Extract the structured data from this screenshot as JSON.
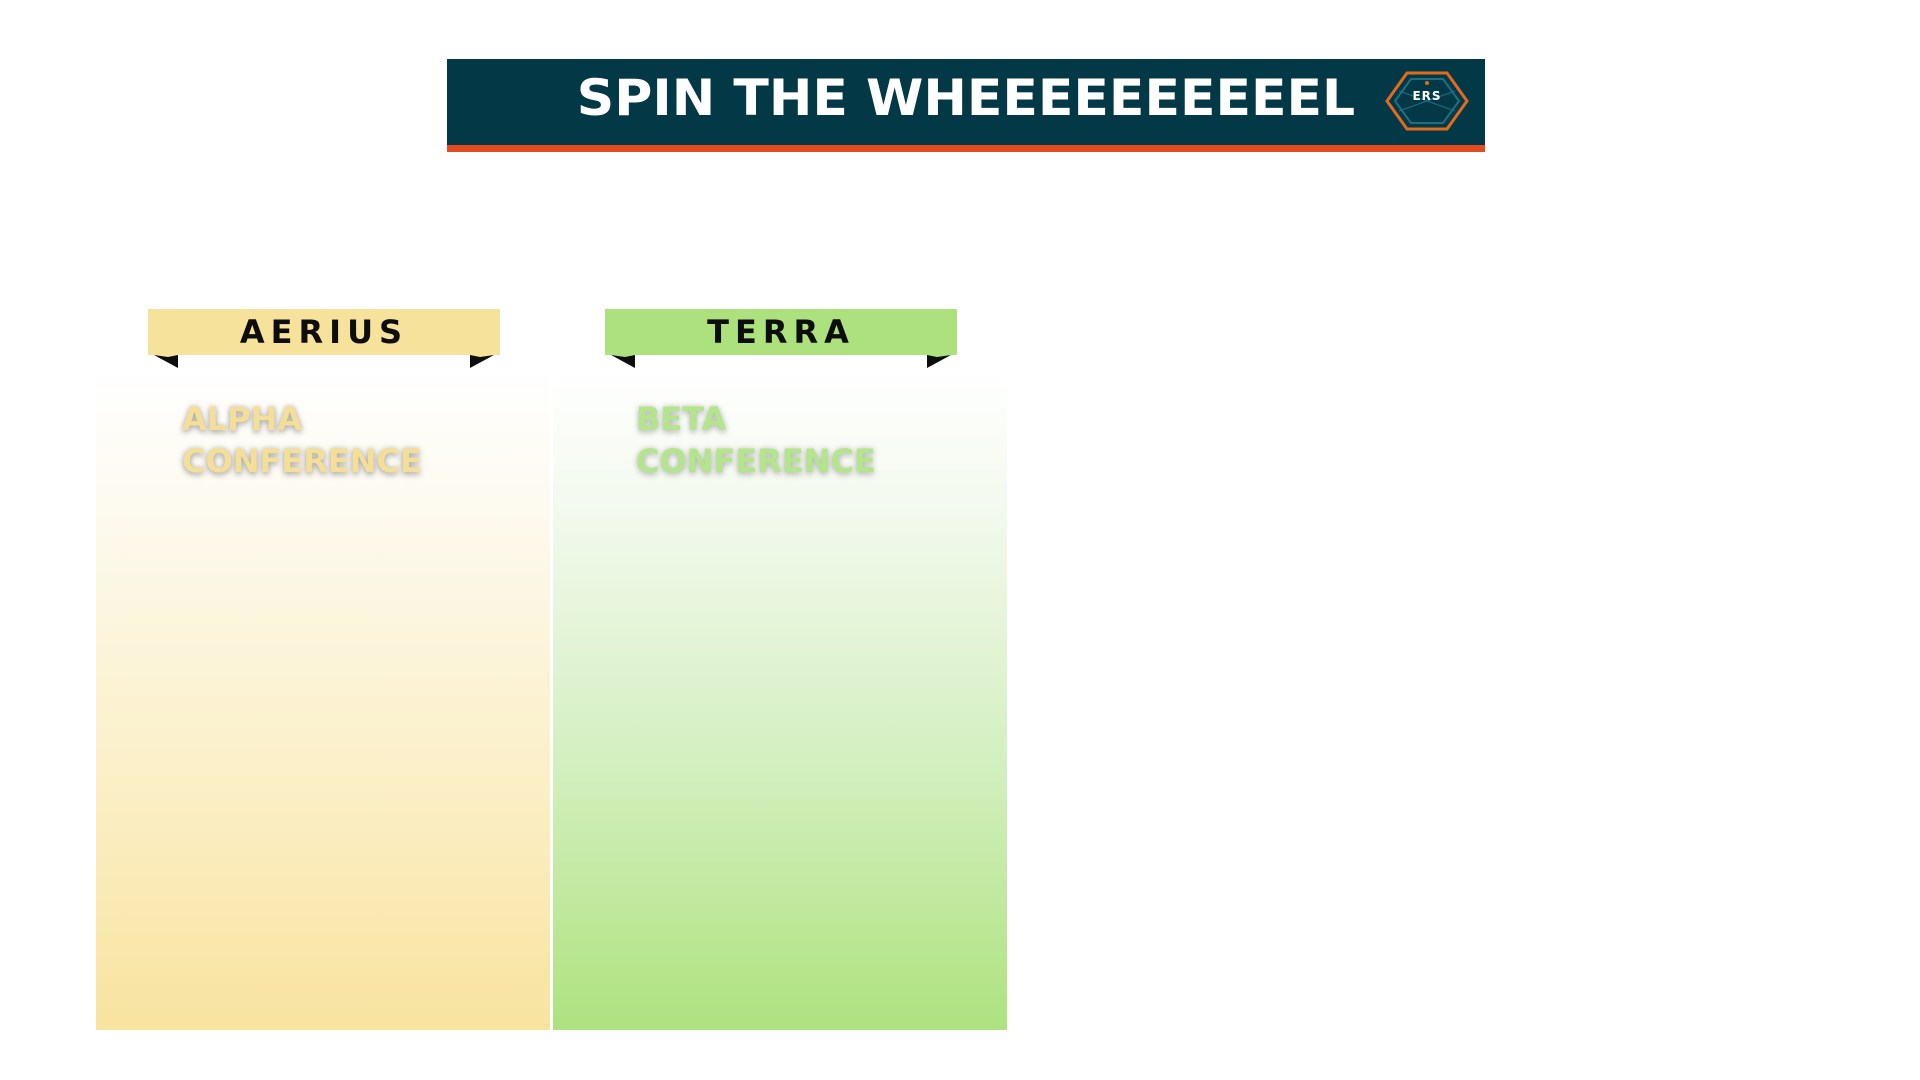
{
  "header": {
    "title": "SPIN THE WHEEEEEEEEEEL",
    "logo_text": "ERS"
  },
  "columns": [
    {
      "ribbon_label": "AERIUS",
      "conference_label": "ALPHA\nCONFERENCE",
      "color": "#f7e29c"
    },
    {
      "ribbon_label": "TERRA",
      "conference_label": "BETA\nCONFERENCE",
      "color": "#ade17e"
    }
  ],
  "colors": {
    "header_background": "#033846",
    "header_accent": "#e24a1f",
    "logo_outline": "#e26a1f"
  }
}
